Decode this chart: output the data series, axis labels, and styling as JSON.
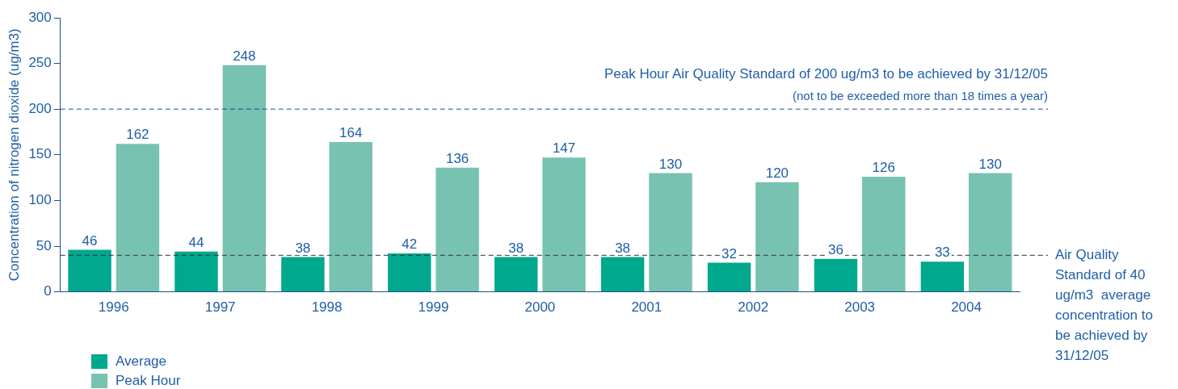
{
  "chart_data": {
    "type": "bar",
    "ylabel": "Concentration of nitrogen dioxide (ug/m3)",
    "categories": [
      "1996",
      "1997",
      "1998",
      "1999",
      "2000",
      "2001",
      "2002",
      "2003",
      "2004"
    ],
    "series": [
      {
        "name": "Average",
        "color": "#00a88e",
        "values": [
          46,
          44,
          38,
          42,
          38,
          38,
          32,
          36,
          33
        ]
      },
      {
        "name": "Peak Hour",
        "color": "#77c2b0",
        "values": [
          162,
          248,
          164,
          136,
          147,
          130,
          120,
          126,
          130
        ]
      }
    ],
    "ylim": [
      0,
      300
    ],
    "yticks": [
      0,
      50,
      100,
      150,
      200,
      250,
      300
    ],
    "grid": false,
    "legend": "bottom left",
    "data_labels": true,
    "ref_lines": [
      {
        "axis": "y",
        "value": 200,
        "label": "Peak Hour Air Quality Standard of 200 ug/m3 to be achieved by 31/12/05",
        "line_style": "dashed",
        "color": "#1f4e8c"
      },
      {
        "axis": "y",
        "value": 40,
        "label": "Air Quality Standard of 40 ug/m3  average concentration to be achieved by 31/12/05",
        "line_style": "dashed",
        "color": "#333333"
      }
    ],
    "annotations": [
      "(not to be exceeded more than 18 times a year)"
    ]
  }
}
